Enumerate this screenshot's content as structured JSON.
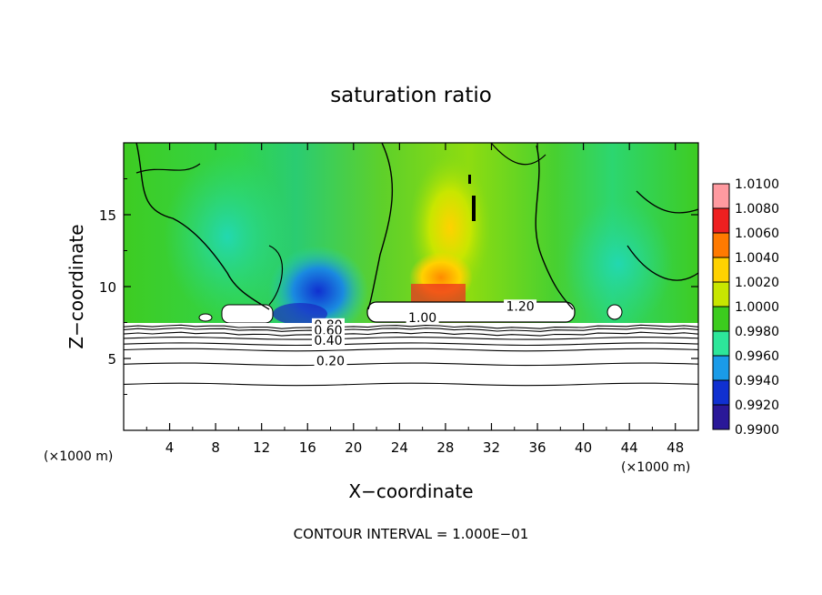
{
  "chart_data": {
    "type": "heatmap",
    "title": "saturation ratio",
    "xlabel": "X−coordinate",
    "ylabel": "Z−coordinate",
    "x_unit_left": "(×1000 m)",
    "x_unit_right": "(×1000 m)",
    "xlim": [
      0,
      50
    ],
    "ylim": [
      0,
      20
    ],
    "x_ticks": [
      4,
      8,
      12,
      16,
      20,
      24,
      28,
      32,
      36,
      40,
      44,
      48
    ],
    "y_ticks": [
      5,
      10,
      15
    ],
    "footer": "CONTOUR INTERVAL = 1.000E−01",
    "colorbar": {
      "levels": [
        "1.0100",
        "1.0080",
        "1.0060",
        "1.0040",
        "1.0020",
        "1.0000",
        "0.9980",
        "0.9960",
        "0.9940",
        "0.9920",
        "0.9900"
      ],
      "colors": [
        "#ff9aa0",
        "#ee2020",
        "#ff7a00",
        "#ffd200",
        "#c8e600",
        "#3ccc1e",
        "#2de69a",
        "#1a9be8",
        "#1030d0",
        "#2a1898"
      ]
    },
    "contour_labels": [
      {
        "text": "1.20",
        "x": 34.5,
        "y": 8.4
      },
      {
        "text": "1.00",
        "x": 26.0,
        "y": 7.6
      },
      {
        "text": "0.80",
        "x": 17.8,
        "y": 7.1
      },
      {
        "text": "0.60",
        "x": 17.8,
        "y": 6.7
      },
      {
        "text": "0.40",
        "x": 17.8,
        "y": 6.0
      },
      {
        "text": "0.20",
        "x": 18.0,
        "y": 4.6
      }
    ]
  }
}
